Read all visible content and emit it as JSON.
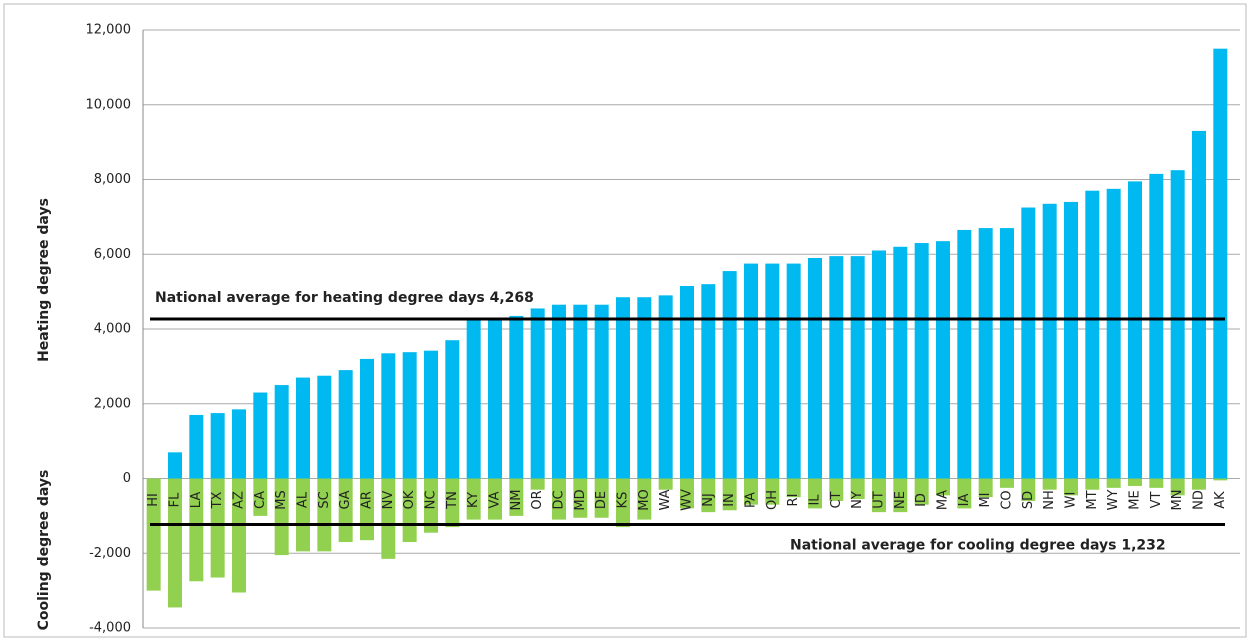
{
  "chart_data": {
    "type": "bar",
    "categories": [
      "HI",
      "FL",
      "LA",
      "TX",
      "AZ",
      "CA",
      "MS",
      "AL",
      "SC",
      "GA",
      "AR",
      "NV",
      "OK",
      "NC",
      "TN",
      "KY",
      "VA",
      "NM",
      "OR",
      "DC",
      "MD",
      "DE",
      "KS",
      "MO",
      "WA",
      "WV",
      "NJ",
      "IN",
      "PA",
      "OH",
      "RI",
      "IL",
      "CT",
      "NY",
      "UT",
      "NE",
      "ID",
      "MA",
      "IA",
      "MI",
      "CO",
      "SD",
      "NH",
      "WI",
      "MT",
      "WY",
      "ME",
      "VT",
      "MN",
      "ND",
      "AK"
    ],
    "series": [
      {
        "name": "Heating degree days",
        "color": "#00b9f0",
        "values": [
          0,
          700,
          1700,
          1750,
          1850,
          2300,
          2500,
          2700,
          2750,
          2900,
          3200,
          3350,
          3380,
          3420,
          3700,
          4250,
          4250,
          4350,
          4550,
          4650,
          4650,
          4650,
          4850,
          4850,
          4900,
          5150,
          5200,
          5550,
          5750,
          5750,
          5750,
          5900,
          5950,
          5950,
          6100,
          6200,
          6300,
          6350,
          6650,
          6700,
          6700,
          7250,
          7350,
          7400,
          7700,
          7750,
          7950,
          8150,
          8250,
          9300,
          11500
        ]
      },
      {
        "name": "Cooling degree days",
        "color": "#92d050",
        "values": [
          -3000,
          -3450,
          -2750,
          -2650,
          -3050,
          -1000,
          -2050,
          -1950,
          -1950,
          -1700,
          -1650,
          -2150,
          -1700,
          -1450,
          -1300,
          -1100,
          -1100,
          -1000,
          -300,
          -1100,
          -1050,
          -1050,
          -1300,
          -1100,
          -300,
          -800,
          -900,
          -850,
          -700,
          -700,
          -500,
          -800,
          -600,
          -550,
          -900,
          -900,
          -700,
          -450,
          -800,
          -500,
          -250,
          -600,
          -300,
          -450,
          -300,
          -250,
          -200,
          -250,
          -450,
          -300,
          -50
        ]
      }
    ],
    "reference_lines": [
      {
        "value": 4268,
        "label": "National average for heating degree days 4,268"
      },
      {
        "value": -1232,
        "label": "National average for cooling degree days 1,232"
      }
    ],
    "ylim": [
      -4000,
      12000
    ],
    "yticks": [
      {
        "value": -4000,
        "label": "-4,000"
      },
      {
        "value": -2000,
        "label": "-2,000"
      },
      0,
      {
        "value": 2000,
        "label": "2,000"
      },
      {
        "value": 4000,
        "label": "4,000"
      },
      {
        "value": 6000,
        "label": "6,000"
      },
      {
        "value": 8000,
        "label": "8,000"
      },
      {
        "value": 10000,
        "label": "10,000"
      },
      {
        "value": 12000,
        "label": "12,000"
      }
    ],
    "grid": true
  }
}
